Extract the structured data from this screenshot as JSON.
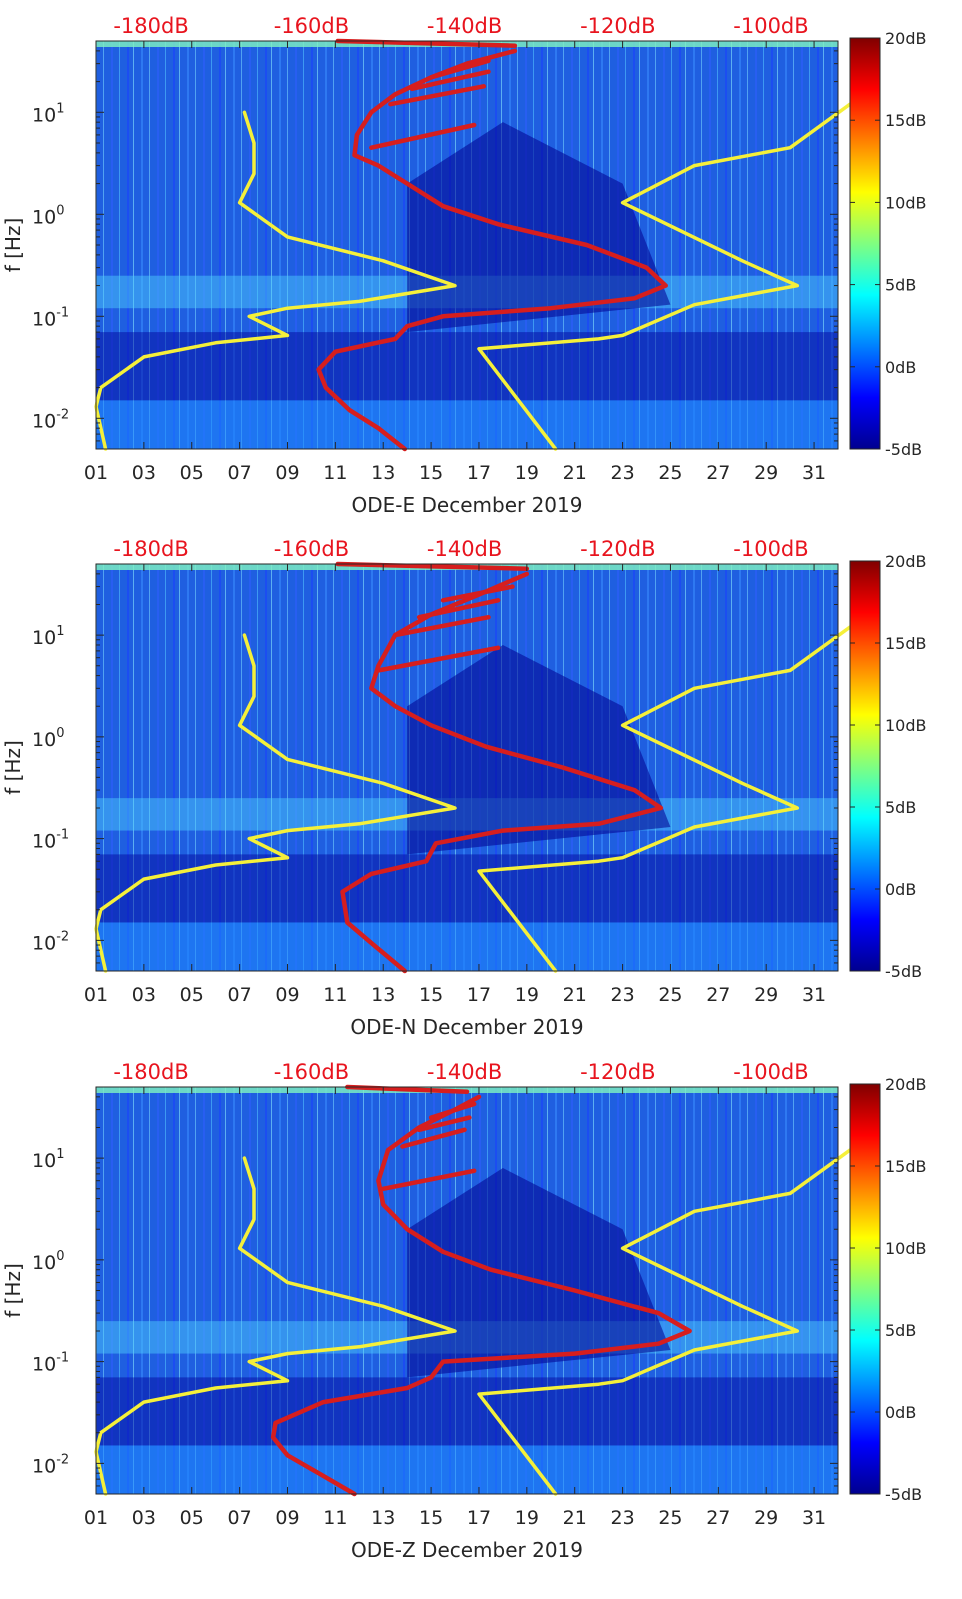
{
  "colors": {
    "curve_red": "#d61e1e",
    "curve_yellow": "#f5f03a",
    "top_axis_text": "#e8141e",
    "colormap": [
      "#00008f",
      "#0000ff",
      "#0080ff",
      "#00ffff",
      "#80ff80",
      "#ffff00",
      "#ff8000",
      "#ff0000",
      "#800000"
    ]
  },
  "chart_data": [
    {
      "type": "heatmap",
      "xlabel": "ODE-E December 2019",
      "ylabel": "f [Hz]",
      "x_ticks": [
        "01",
        "03",
        "05",
        "07",
        "09",
        "11",
        "13",
        "15",
        "17",
        "19",
        "21",
        "23",
        "25",
        "27",
        "29",
        "31"
      ],
      "xlim": [
        1,
        32
      ],
      "y_scale": "log",
      "y_ticks": [
        {
          "value": 0.01,
          "label": "10-2",
          "base": "10",
          "exp": "-2"
        },
        {
          "value": 0.1,
          "label": "10-1",
          "base": "10",
          "exp": "-1"
        },
        {
          "value": 1,
          "label": "100",
          "base": "10",
          "exp": "0"
        },
        {
          "value": 10,
          "label": "101",
          "base": "10",
          "exp": "1"
        }
      ],
      "ylim": [
        0.005,
        50
      ],
      "top_axis_ticks": [
        "-180dB",
        "-160dB",
        "-140dB",
        "-120dB",
        "-100dB"
      ],
      "top_axis_day_positions": [
        3.3,
        10,
        16.4,
        22.8,
        29.2
      ],
      "colorbar": {
        "ticks": [
          "20dB",
          "15dB",
          "10dB",
          "5dB",
          "0dB",
          "-5dB"
        ],
        "range": [
          -5,
          20
        ]
      },
      "series": [
        {
          "style": "red",
          "points": [
            [
              13.9,
              0.005
            ],
            [
              12.8,
              0.008
            ],
            [
              11.6,
              0.012
            ],
            [
              10.6,
              0.02
            ],
            [
              10.3,
              0.03
            ],
            [
              11.0,
              0.045
            ],
            [
              13.5,
              0.06
            ],
            [
              14.0,
              0.08
            ],
            [
              15.5,
              0.1
            ],
            [
              20,
              0.12
            ],
            [
              23.5,
              0.15
            ],
            [
              24.8,
              0.2
            ],
            [
              24,
              0.3
            ],
            [
              21.5,
              0.5
            ],
            [
              17.8,
              0.8
            ],
            [
              15.5,
              1.2
            ],
            [
              14,
              2
            ],
            [
              12.8,
              3
            ],
            [
              11.8,
              3.8
            ],
            [
              11.9,
              6
            ],
            [
              12.5,
              10
            ],
            [
              13.5,
              15
            ],
            [
              15,
              22
            ],
            [
              16.5,
              30
            ],
            [
              18.5,
              40
            ]
          ]
        },
        {
          "style": "red",
          "points": [
            [
              12.5,
              4.5
            ],
            [
              16.8,
              7.5
            ]
          ]
        },
        {
          "style": "red",
          "points": [
            [
              13.3,
              12
            ],
            [
              17.2,
              18
            ]
          ]
        },
        {
          "style": "red",
          "points": [
            [
              14.2,
              17
            ],
            [
              17.4,
              25
            ]
          ]
        },
        {
          "style": "red",
          "points": [
            [
              15,
              22
            ],
            [
              17.4,
              32
            ]
          ]
        },
        {
          "style": "red",
          "points": [
            [
              11.1,
              50
            ],
            [
              18.5,
              45
            ]
          ]
        },
        {
          "style": "yellow",
          "points": [
            [
              1.4,
              0.005
            ],
            [
              1.0,
              0.013
            ],
            [
              1.2,
              0.02
            ],
            [
              3,
              0.04
            ],
            [
              6,
              0.055
            ],
            [
              9,
              0.065
            ],
            [
              7.4,
              0.1
            ],
            [
              9,
              0.12
            ],
            [
              12,
              0.14
            ],
            [
              16,
              0.2
            ],
            [
              13,
              0.35
            ],
            [
              9,
              0.6
            ],
            [
              7,
              1.3
            ],
            [
              7.6,
              2.5
            ],
            [
              7.6,
              5
            ],
            [
              7.2,
              10
            ]
          ]
        },
        {
          "style": "yellow",
          "points": [
            [
              20.2,
              0.005
            ],
            [
              17.0,
              0.048
            ],
            [
              22,
              0.06
            ],
            [
              23,
              0.065
            ],
            [
              26,
              0.13
            ],
            [
              30.3,
              0.2
            ],
            [
              28,
              0.35
            ],
            [
              23,
              1.3
            ],
            [
              26,
              3
            ],
            [
              30,
              4.5
            ],
            [
              32.5,
              12
            ]
          ]
        }
      ]
    },
    {
      "type": "heatmap",
      "xlabel": "ODE-N December 2019",
      "ylabel": "f [Hz]",
      "x_ticks": [
        "01",
        "03",
        "05",
        "07",
        "09",
        "11",
        "13",
        "15",
        "17",
        "19",
        "21",
        "23",
        "25",
        "27",
        "29",
        "31"
      ],
      "xlim": [
        1,
        32
      ],
      "y_scale": "log",
      "y_ticks": [
        {
          "value": 0.01,
          "label": "10-2",
          "base": "10",
          "exp": "-2"
        },
        {
          "value": 0.1,
          "label": "10-1",
          "base": "10",
          "exp": "-1"
        },
        {
          "value": 1,
          "label": "100",
          "base": "10",
          "exp": "0"
        },
        {
          "value": 10,
          "label": "101",
          "base": "10",
          "exp": "1"
        }
      ],
      "ylim": [
        0.005,
        50
      ],
      "top_axis_ticks": [
        "-180dB",
        "-160dB",
        "-140dB",
        "-120dB",
        "-100dB"
      ],
      "top_axis_day_positions": [
        3.3,
        10,
        16.4,
        22.8,
        29.2
      ],
      "colorbar": {
        "ticks": [
          "20dB",
          "15dB",
          "10dB",
          "5dB",
          "0dB",
          "-5dB"
        ],
        "range": [
          -5,
          20
        ]
      },
      "series": [
        {
          "style": "red",
          "points": [
            [
              13.9,
              0.005
            ],
            [
              12.6,
              0.009
            ],
            [
              11.5,
              0.015
            ],
            [
              11.3,
              0.03
            ],
            [
              12.5,
              0.045
            ],
            [
              14.8,
              0.06
            ],
            [
              15.2,
              0.09
            ],
            [
              18,
              0.12
            ],
            [
              22,
              0.14
            ],
            [
              24.6,
              0.2
            ],
            [
              23.5,
              0.3
            ],
            [
              20.5,
              0.5
            ],
            [
              17.3,
              0.8
            ],
            [
              15,
              1.3
            ],
            [
              13.5,
              2
            ],
            [
              12.5,
              3
            ],
            [
              12.8,
              5
            ],
            [
              13.5,
              10
            ],
            [
              15,
              16
            ],
            [
              17,
              25
            ],
            [
              19,
              40
            ]
          ]
        },
        {
          "style": "red",
          "points": [
            [
              12.8,
              4.5
            ],
            [
              17.8,
              7.5
            ]
          ]
        },
        {
          "style": "red",
          "points": [
            [
              13.5,
              10
            ],
            [
              17.4,
              15
            ]
          ]
        },
        {
          "style": "red",
          "points": [
            [
              14.5,
              15
            ],
            [
              17.8,
              22
            ]
          ]
        },
        {
          "style": "red",
          "points": [
            [
              15.5,
              22
            ],
            [
              18.4,
              30
            ]
          ]
        },
        {
          "style": "red",
          "points": [
            [
              11.1,
              50
            ],
            [
              19,
              45
            ]
          ]
        },
        {
          "style": "yellow",
          "points": [
            [
              1.4,
              0.005
            ],
            [
              1.0,
              0.013
            ],
            [
              1.2,
              0.02
            ],
            [
              3,
              0.04
            ],
            [
              6,
              0.055
            ],
            [
              9,
              0.065
            ],
            [
              7.4,
              0.1
            ],
            [
              9,
              0.12
            ],
            [
              12,
              0.14
            ],
            [
              16,
              0.2
            ],
            [
              13,
              0.35
            ],
            [
              9,
              0.6
            ],
            [
              7,
              1.3
            ],
            [
              7.6,
              2.5
            ],
            [
              7.6,
              5
            ],
            [
              7.2,
              10
            ]
          ]
        },
        {
          "style": "yellow",
          "points": [
            [
              20.2,
              0.005
            ],
            [
              17.0,
              0.048
            ],
            [
              22,
              0.06
            ],
            [
              23,
              0.065
            ],
            [
              26,
              0.13
            ],
            [
              30.3,
              0.2
            ],
            [
              28,
              0.35
            ],
            [
              23,
              1.3
            ],
            [
              26,
              3
            ],
            [
              30,
              4.5
            ],
            [
              32.5,
              12
            ]
          ]
        }
      ]
    },
    {
      "type": "heatmap",
      "xlabel": "ODE-Z December 2019",
      "ylabel": "f [Hz]",
      "x_ticks": [
        "01",
        "03",
        "05",
        "07",
        "09",
        "11",
        "13",
        "15",
        "17",
        "19",
        "21",
        "23",
        "25",
        "27",
        "29",
        "31"
      ],
      "xlim": [
        1,
        32
      ],
      "y_scale": "log",
      "y_ticks": [
        {
          "value": 0.01,
          "label": "10-2",
          "base": "10",
          "exp": "-2"
        },
        {
          "value": 0.1,
          "label": "10-1",
          "base": "10",
          "exp": "-1"
        },
        {
          "value": 1,
          "label": "100",
          "base": "10",
          "exp": "0"
        },
        {
          "value": 10,
          "label": "101",
          "base": "10",
          "exp": "1"
        }
      ],
      "ylim": [
        0.005,
        50
      ],
      "top_axis_ticks": [
        "-180dB",
        "-160dB",
        "-140dB",
        "-120dB",
        "-100dB"
      ],
      "top_axis_day_positions": [
        3.3,
        10,
        16.4,
        22.8,
        29.2
      ],
      "colorbar": {
        "ticks": [
          "20dB",
          "15dB",
          "10dB",
          "5dB",
          "0dB",
          "-5dB"
        ],
        "range": [
          -5,
          20
        ]
      },
      "series": [
        {
          "style": "red",
          "points": [
            [
              11.8,
              0.005
            ],
            [
              10.3,
              0.008
            ],
            [
              9,
              0.012
            ],
            [
              8.4,
              0.018
            ],
            [
              8.5,
              0.025
            ],
            [
              10.5,
              0.04
            ],
            [
              14,
              0.055
            ],
            [
              15,
              0.07
            ],
            [
              15.5,
              0.1
            ],
            [
              21,
              0.12
            ],
            [
              24.5,
              0.15
            ],
            [
              25.8,
              0.2
            ],
            [
              24.5,
              0.3
            ],
            [
              21,
              0.5
            ],
            [
              17.5,
              0.8
            ],
            [
              15.5,
              1.2
            ],
            [
              14,
              2
            ],
            [
              13,
              3.5
            ],
            [
              12.8,
              6
            ],
            [
              13.2,
              12
            ],
            [
              14.5,
              20
            ],
            [
              16,
              30
            ],
            [
              17,
              40
            ]
          ]
        },
        {
          "style": "red",
          "points": [
            [
              13,
              5
            ],
            [
              16.8,
              7.5
            ]
          ]
        },
        {
          "style": "red",
          "points": [
            [
              13.8,
              13
            ],
            [
              16.4,
              19
            ]
          ]
        },
        {
          "style": "red",
          "points": [
            [
              14.5,
              19
            ],
            [
              16.6,
              25
            ]
          ]
        },
        {
          "style": "red",
          "points": [
            [
              15,
              25
            ],
            [
              16.8,
              34
            ]
          ]
        },
        {
          "style": "red",
          "points": [
            [
              11.5,
              50
            ],
            [
              16.5,
              45
            ]
          ]
        },
        {
          "style": "yellow",
          "points": [
            [
              1.4,
              0.005
            ],
            [
              1.0,
              0.013
            ],
            [
              1.2,
              0.02
            ],
            [
              3,
              0.04
            ],
            [
              6,
              0.055
            ],
            [
              9,
              0.065
            ],
            [
              7.4,
              0.1
            ],
            [
              9,
              0.12
            ],
            [
              12,
              0.14
            ],
            [
              16,
              0.2
            ],
            [
              13,
              0.35
            ],
            [
              9,
              0.6
            ],
            [
              7,
              1.3
            ],
            [
              7.6,
              2.5
            ],
            [
              7.6,
              5
            ],
            [
              7.2,
              10
            ]
          ]
        },
        {
          "style": "yellow",
          "points": [
            [
              20.2,
              0.005
            ],
            [
              17.0,
              0.048
            ],
            [
              22,
              0.06
            ],
            [
              23,
              0.065
            ],
            [
              26,
              0.13
            ],
            [
              30.3,
              0.2
            ],
            [
              28,
              0.35
            ],
            [
              23,
              1.3
            ],
            [
              26,
              3
            ],
            [
              30,
              4.5
            ],
            [
              32.5,
              12
            ]
          ]
        }
      ]
    }
  ]
}
